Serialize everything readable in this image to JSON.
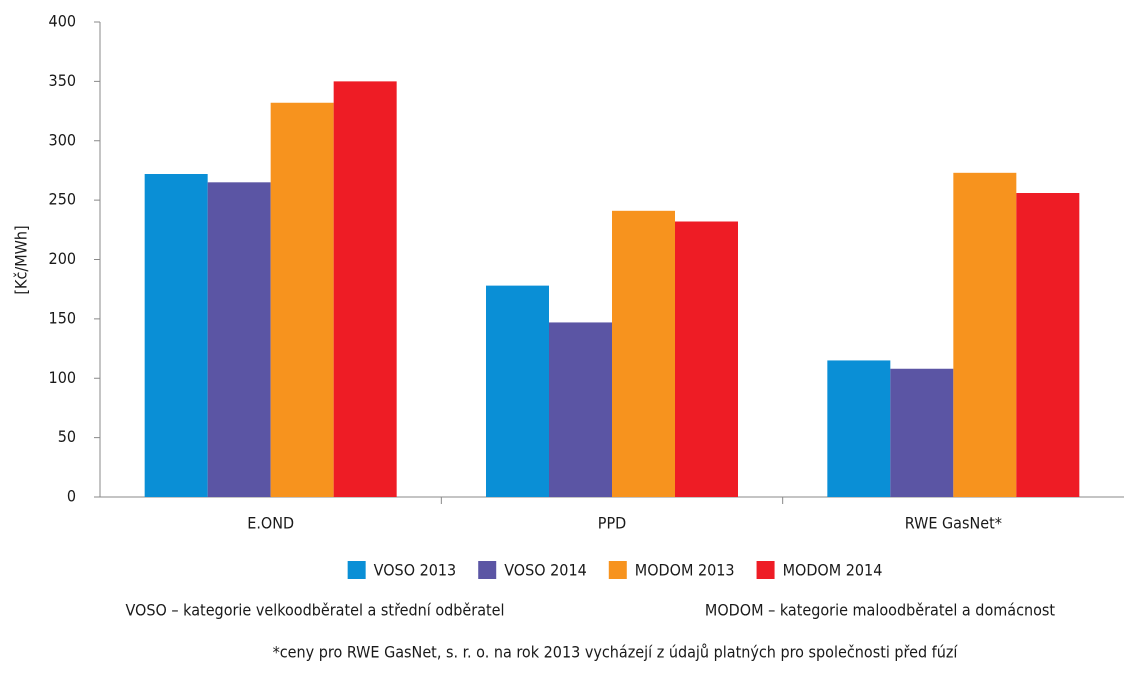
{
  "chart_data": {
    "type": "bar",
    "ylabel": "[Kč/MWh]",
    "categories": [
      "E.OND",
      "PPD",
      "RWE GasNet*"
    ],
    "series": [
      {
        "name": "VOSO 2013",
        "color": "#0a8fd6",
        "values": [
          272,
          178,
          115
        ]
      },
      {
        "name": "VOSO 2014",
        "color": "#5b55a4",
        "values": [
          265,
          147,
          108
        ]
      },
      {
        "name": "MODOM 2013",
        "color": "#f7931e",
        "values": [
          332,
          241,
          273
        ]
      },
      {
        "name": "MODOM 2014",
        "color": "#ee1c25",
        "values": [
          350,
          232,
          256
        ]
      }
    ],
    "ylim": [
      0,
      400
    ],
    "yticks": [
      0,
      50,
      100,
      150,
      200,
      250,
      300,
      350,
      400
    ],
    "grid": false,
    "notes": [
      "VOSO – kategorie velkoodběratel a střední odběratel",
      "MODOM – kategorie maloodběratel a domácnost"
    ],
    "footnote": "*ceny pro RWE GasNet, s. r. o. na rok 2013 vycházejí z údajů platných pro společnosti před fúzí"
  }
}
